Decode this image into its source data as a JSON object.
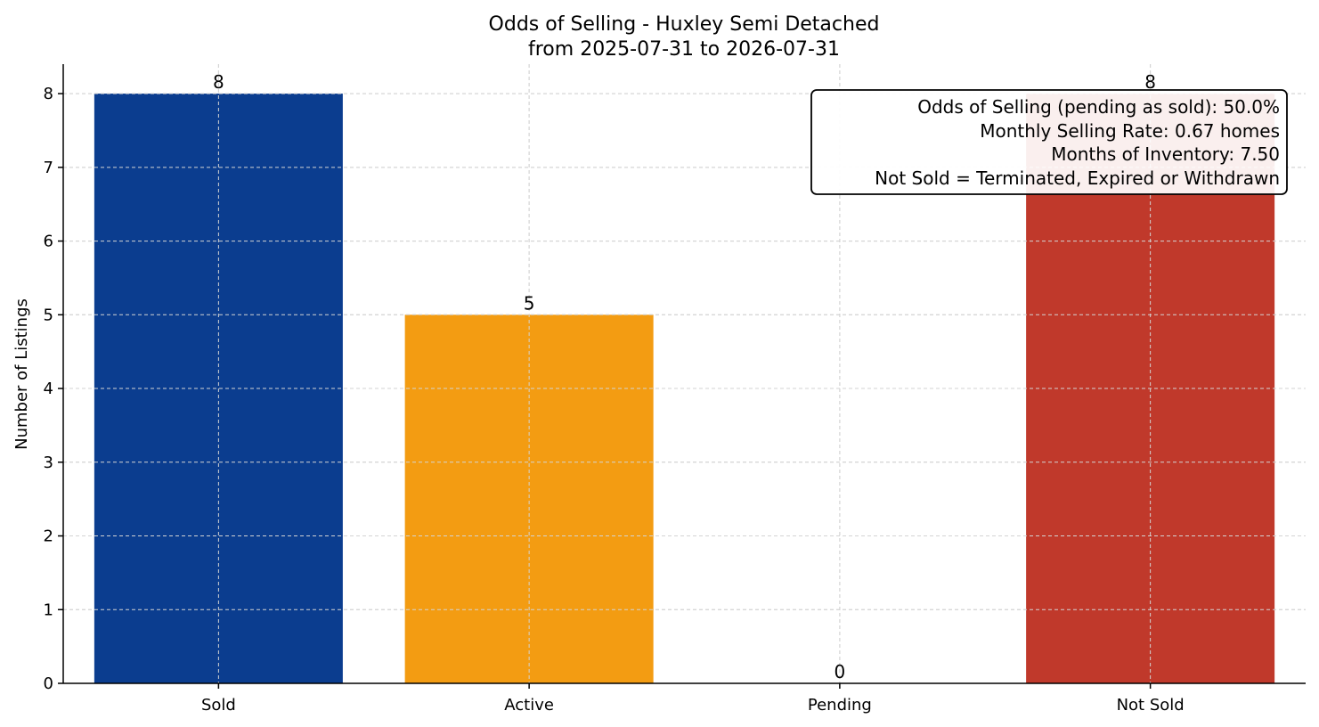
{
  "chart_data": {
    "type": "bar",
    "title": "Odds of Selling - Huxley Semi Detached",
    "subtitle": "from 2025-07-31 to 2026-07-31",
    "xlabel": "",
    "ylabel": "Number of Listings",
    "categories": [
      "Sold",
      "Active",
      "Pending",
      "Not Sold"
    ],
    "values": [
      8,
      5,
      0,
      8
    ],
    "value_labels": [
      "8",
      "5",
      "0",
      "8"
    ],
    "colors": [
      "#0b3d8f",
      "#f39c12",
      "#7f7f7f",
      "#c0392b"
    ],
    "ylim": [
      0,
      8.4
    ],
    "yticks": [
      0,
      1,
      2,
      3,
      4,
      5,
      6,
      7,
      8
    ],
    "ytick_labels": [
      "0",
      "1",
      "2",
      "3",
      "4",
      "5",
      "6",
      "7",
      "8"
    ],
    "grid": true,
    "annotation": {
      "placement": "top-right",
      "lines": [
        "Odds of Selling (pending as sold): 50.0%",
        "Monthly Selling Rate: 0.67 homes",
        "Months of Inventory: 7.50",
        "Not Sold = Terminated, Expired or Withdrawn"
      ]
    }
  }
}
